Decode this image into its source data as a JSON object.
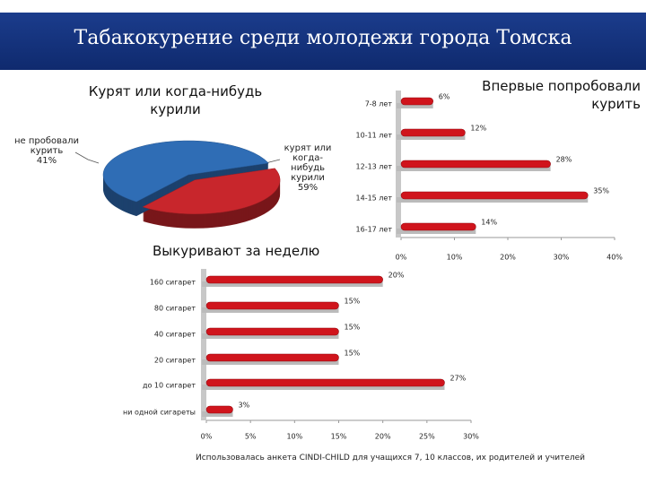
{
  "header": {
    "title": "Табакокурение среди молодежи города Томска"
  },
  "chart_data": [
    {
      "type": "pie",
      "title": "Курят или когда-нибудь курили",
      "categories": [
        "не пробовали курить",
        "курят или когда-нибудь курили"
      ],
      "values": [
        41,
        59
      ],
      "value_labels": [
        "41%",
        "59%"
      ],
      "colors": [
        "#c8262c",
        "#2f6db5"
      ]
    },
    {
      "type": "bar",
      "orientation": "horizontal",
      "title": "Впервые попробовали курить",
      "categories": [
        "7-8 лет",
        "10-11 лет",
        "12-13 лет",
        "14-15 лет",
        "16-17 лет"
      ],
      "values": [
        6,
        12,
        28,
        35,
        14
      ],
      "value_labels": [
        "6%",
        "12%",
        "28%",
        "35%",
        "14%"
      ],
      "color": "#d0141c",
      "xlim": [
        0,
        40
      ],
      "xticks": [
        {
          "value": 0,
          "label": "0%"
        },
        {
          "value": 10,
          "label": "10%"
        },
        {
          "value": 20,
          "label": "20%"
        },
        {
          "value": 30,
          "label": "30%"
        },
        {
          "value": 40,
          "label": "40%"
        }
      ]
    },
    {
      "type": "bar",
      "orientation": "horizontal",
      "title": "Выкуривают за неделю",
      "categories": [
        "160 сигарет",
        "80 сигарет",
        "40 сигарет",
        "20 сигарет",
        "до 10 сигарет",
        "ни одной сигареты"
      ],
      "values": [
        20,
        15,
        15,
        15,
        27,
        3
      ],
      "value_labels": [
        "20%",
        "15%",
        "15%",
        "15%",
        "27%",
        "3%"
      ],
      "color": "#d0141c",
      "xlim": [
        0,
        30
      ],
      "xticks": [
        {
          "value": 0,
          "label": "0%"
        },
        {
          "value": 5,
          "label": "5%"
        },
        {
          "value": 10,
          "label": "10%"
        },
        {
          "value": 15,
          "label": "15%"
        },
        {
          "value": 20,
          "label": "20%"
        },
        {
          "value": 25,
          "label": "25%"
        },
        {
          "value": 30,
          "label": "30%"
        }
      ]
    }
  ],
  "footnote": "Использовалась анкета CINDI-CHILD  для учащихся 7, 10 классов, их родителей и учителей"
}
